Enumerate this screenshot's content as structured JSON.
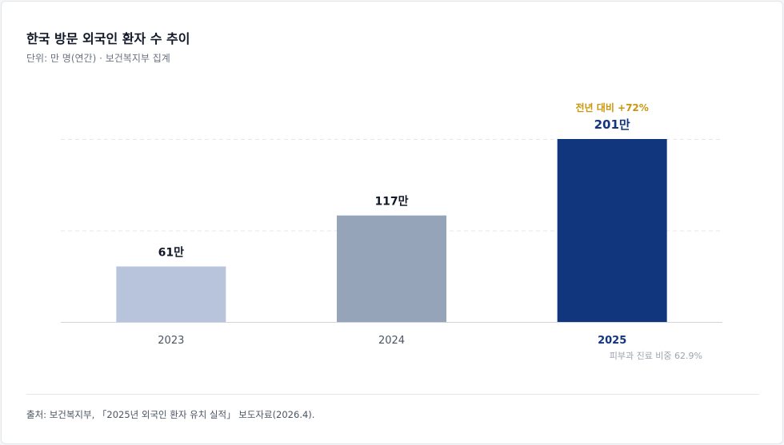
{
  "header": {
    "title": "한국 방문 외국인 환자 수 추이",
    "subtitle": "단위: 만 명(연간) · 보건복지부 집계"
  },
  "chart_data": {
    "type": "bar",
    "categories": [
      "2023",
      "2024",
      "2025"
    ],
    "values": [
      61,
      117,
      201
    ],
    "value_labels": [
      "61만",
      "117만",
      "201만"
    ],
    "ylim": [
      0,
      201
    ],
    "grid": true,
    "colors": [
      "#b8c4dc",
      "#95a4b9",
      "#11367d"
    ],
    "highlight_index": 2,
    "annotations": {
      "growth": "전년 대비 +72%",
      "note": "피부과 진료 비중 62.9%"
    }
  },
  "colors": {
    "highlight": "#11367d",
    "growth": "#c9960c",
    "text_dark": "#111827",
    "muted": "#9ca3af"
  },
  "footer": {
    "source": "출처: 보건복지부, 「2025년 외국인 환자 유치 실적」 보도자료(2026.4)."
  }
}
